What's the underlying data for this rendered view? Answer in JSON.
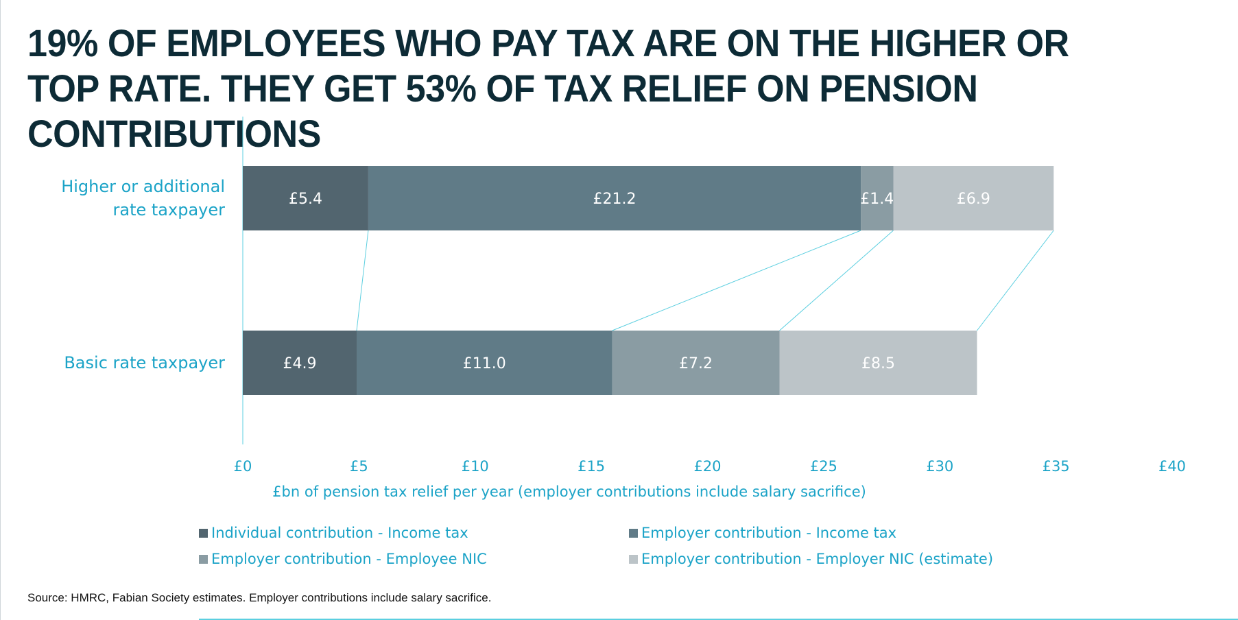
{
  "chart_data": {
    "type": "bar",
    "orientation": "horizontal",
    "stacked": true,
    "title": "19% OF EMPLOYEES WHO PAY TAX ARE ON THE HIGHER OR TOP RATE. THEY GET 53% OF TAX RELIEF ON PENSION CONTRIBUTIONS",
    "xlabel": "£bn of pension tax relief per year (employer contributions include salary sacrifice)",
    "ylabel": "",
    "xlim": [
      0,
      40
    ],
    "x_ticks": [
      0,
      5,
      10,
      15,
      20,
      25,
      30,
      35,
      40
    ],
    "tick_prefix": "£",
    "grid": false,
    "legend_position": "bottom",
    "series_lines": true,
    "categories": [
      {
        "lines": [
          "Higher or additional",
          "rate taxpayer"
        ]
      },
      {
        "lines": [
          "Basic rate taxpayer"
        ]
      }
    ],
    "series": [
      {
        "name": "Individual contribution - Income tax",
        "color": "#52656f",
        "values": [
          5.4,
          4.9
        ],
        "labels": [
          "£5.4",
          "£4.9"
        ]
      },
      {
        "name": "Employer contribution - Income tax",
        "color": "#607b87",
        "values": [
          21.2,
          11.0
        ],
        "labels": [
          "£21.2",
          "£11.0"
        ]
      },
      {
        "name": "Employer contribution - Employee NIC",
        "color": "#8a9ca3",
        "values": [
          1.4,
          7.2
        ],
        "labels": [
          "£1.4",
          "£7.2"
        ]
      },
      {
        "name": "Employer contribution - Employer NIC (estimate)",
        "color": "#bcc4c8",
        "values": [
          6.9,
          8.5
        ],
        "labels": [
          "£6.9",
          "£8.5"
        ]
      }
    ]
  },
  "source": "Source: HMRC, Fabian Society estimates. Employer contributions include salary sacrifice.",
  "colors": {
    "title": "#0d2b36",
    "accent": "#1ba3c7",
    "connector": "#5ccfe0"
  }
}
